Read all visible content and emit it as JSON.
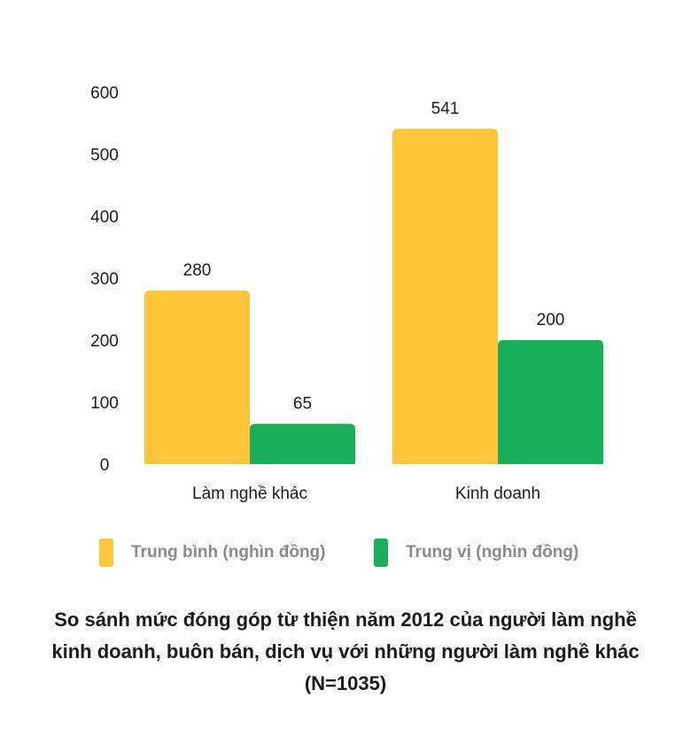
{
  "chart_data": {
    "type": "bar",
    "title": "So sánh mức đóng góp từ thiện năm 2012 của người làm nghề kinh doanh, buôn bán, dịch vụ với những người làm nghề khác (N=1035)",
    "categories": [
      "Làm nghề khác",
      "Kinh doanh"
    ],
    "series": [
      {
        "name": "Trung bình (nghìn đồng)",
        "values": [
          280,
          541
        ],
        "color": "#FFC53A"
      },
      {
        "name": "Trung vị (nghìn đồng)",
        "values": [
          65,
          200
        ],
        "color": "#18AE5A"
      }
    ],
    "ylim": [
      0,
      600
    ],
    "yticks": [
      0,
      100,
      200,
      300,
      400,
      500,
      600
    ],
    "xlabel": "",
    "ylabel": "",
    "grid": false,
    "legend_position": "bottom"
  }
}
